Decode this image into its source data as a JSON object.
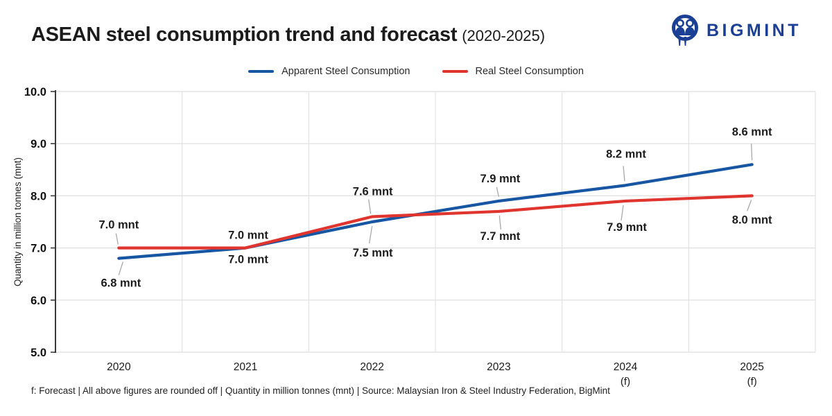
{
  "header": {
    "title": "ASEAN steel consumption trend and forecast",
    "title_suffix": "(2020-2025)",
    "brand": {
      "name": "BIGMINT",
      "color": "#1b3f94",
      "icon": "bigmint-people-circle-logo"
    }
  },
  "legend": [
    {
      "label": "Apparent Steel Consumption",
      "color": "#1656a3"
    },
    {
      "label": "Real Steel Consumption",
      "color": "#e0342f"
    }
  ],
  "chart_data": {
    "type": "line",
    "title": "ASEAN steel consumption trend and forecast (2020-2025)",
    "categories": [
      "2020",
      "2021",
      "2022",
      "2023",
      "2024",
      "2025"
    ],
    "category_suffixes": [
      "",
      "",
      "",
      "",
      "(f)",
      "(f)"
    ],
    "series": [
      {
        "name": "Apparent Steel Consumption",
        "color": "#1656a3",
        "values": [
          6.8,
          7.0,
          7.5,
          7.9,
          8.2,
          8.6
        ],
        "point_labels": [
          "6.8 mnt",
          "7.0 mnt",
          "7.5 mnt",
          "7.9 mnt",
          "8.2 mnt",
          "8.6 mnt"
        ]
      },
      {
        "name": "Real Steel Consumption",
        "color": "#e0342f",
        "values": [
          7.0,
          7.0,
          7.6,
          7.7,
          7.9,
          8.0
        ],
        "point_labels": [
          "7.0 mnt",
          "7.0 mnt",
          "7.6 mnt",
          "7.7 mnt",
          "7.9 mnt",
          "8.0 mnt"
        ]
      }
    ],
    "xlabel": "",
    "ylabel": "Quantity in million tonnes (mnt)",
    "ylim": [
      5.0,
      10.0
    ],
    "yticks": [
      5.0,
      6.0,
      7.0,
      8.0,
      9.0,
      10.0
    ],
    "ytick_labels": [
      "5.0",
      "6.0",
      "7.0",
      "8.0",
      "9.0",
      "10.0"
    ],
    "grid": true,
    "legend_position": "top",
    "unit": "mnt"
  },
  "footer": {
    "note": "f: Forecast | All above figures are rounded off | Quantity in million tonnes (mnt) | Source: Malaysian Iron & Steel Industry Federation, BigMint"
  }
}
